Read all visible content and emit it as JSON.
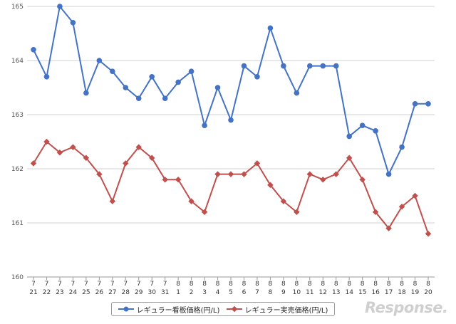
{
  "chart_data": {
    "type": "line",
    "categories": [
      [
        "7",
        "21"
      ],
      [
        "7",
        "22"
      ],
      [
        "7",
        "23"
      ],
      [
        "7",
        "24"
      ],
      [
        "7",
        "25"
      ],
      [
        "7",
        "26"
      ],
      [
        "7",
        "27"
      ],
      [
        "7",
        "28"
      ],
      [
        "7",
        "29"
      ],
      [
        "7",
        "30"
      ],
      [
        "7",
        "31"
      ],
      [
        "8",
        "1"
      ],
      [
        "8",
        "2"
      ],
      [
        "8",
        "3"
      ],
      [
        "8",
        "4"
      ],
      [
        "8",
        "5"
      ],
      [
        "8",
        "6"
      ],
      [
        "8",
        "7"
      ],
      [
        "8",
        "8"
      ],
      [
        "8",
        "9"
      ],
      [
        "8",
        "10"
      ],
      [
        "8",
        "11"
      ],
      [
        "8",
        "12"
      ],
      [
        "8",
        "13"
      ],
      [
        "8",
        "14"
      ],
      [
        "8",
        "15"
      ],
      [
        "8",
        "16"
      ],
      [
        "8",
        "17"
      ],
      [
        "8",
        "18"
      ],
      [
        "8",
        "19"
      ],
      [
        "8",
        "20"
      ]
    ],
    "series": [
      {
        "name": "レギュラー看板価格(円/L)",
        "color": "#4472c4",
        "marker": "circle",
        "values": [
          164.2,
          163.7,
          165.0,
          164.7,
          163.4,
          164.0,
          163.8,
          163.5,
          163.3,
          163.7,
          163.3,
          163.6,
          163.8,
          162.8,
          163.5,
          162.9,
          163.9,
          163.7,
          164.6,
          163.9,
          163.4,
          163.9,
          163.9,
          163.9,
          162.6,
          162.8,
          162.7,
          161.9,
          162.4,
          163.2,
          163.2
        ]
      },
      {
        "name": "レギュラー実売価格(円/L)",
        "color": "#c0504d",
        "marker": "diamond",
        "values": [
          162.1,
          162.5,
          162.3,
          162.4,
          162.2,
          161.9,
          161.4,
          162.1,
          162.4,
          162.2,
          161.8,
          161.8,
          161.4,
          161.2,
          161.9,
          161.9,
          161.9,
          162.1,
          161.7,
          161.4,
          161.2,
          161.9,
          161.8,
          161.9,
          162.2,
          161.8,
          161.2,
          160.9,
          161.3,
          161.5,
          160.8
        ]
      }
    ],
    "ylim": [
      160,
      165
    ],
    "yticks": [
      "160",
      "161",
      "162",
      "163",
      "164",
      "165"
    ],
    "grid": true,
    "legend_position": "bottom"
  },
  "watermark": "Response."
}
